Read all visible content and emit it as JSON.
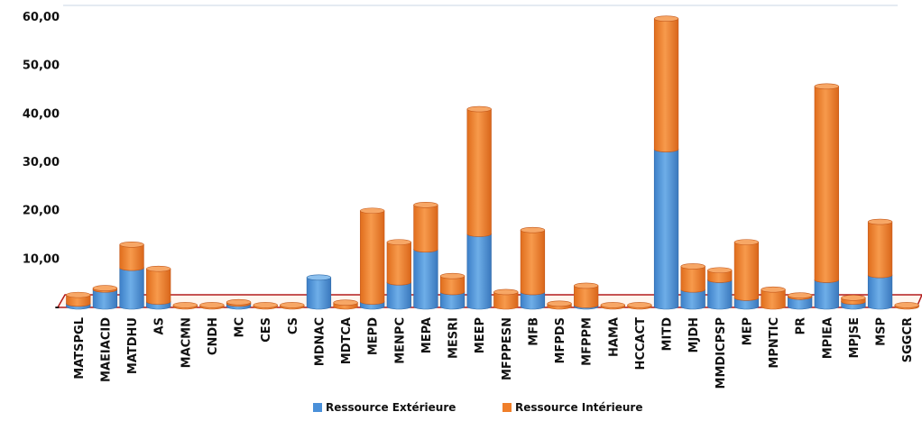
{
  "chart_data": {
    "type": "bar",
    "stacked": true,
    "title": "",
    "xlabel": "",
    "ylabel": "",
    "ylim": [
      0,
      60
    ],
    "yticks": [
      {
        "value": 0,
        "label": "-"
      },
      {
        "value": 10,
        "label": "10,00"
      },
      {
        "value": 20,
        "label": "20,00"
      },
      {
        "value": 30,
        "label": "30,00"
      },
      {
        "value": 40,
        "label": "40,00"
      },
      {
        "value": 50,
        "label": "50,00"
      },
      {
        "value": 60,
        "label": "60,00"
      }
    ],
    "categories": [
      "MATSPGL",
      "MAEIACID",
      "MATDHU",
      "AS",
      "MACMN",
      "CNDH",
      "MC",
      "CES",
      "CS",
      "MDNAC",
      "MDTCA",
      "MEPD",
      "MENPC",
      "MEPA",
      "MESRI",
      "MEEP",
      "MFPPESN",
      "MFB",
      "MFPDS",
      "MFPPM",
      "HAMA",
      "HCCACT",
      "MITD",
      "MJDH",
      "MMDICPSP",
      "MEP",
      "MPNTIC",
      "PR",
      "MPIEA",
      "MPJSE",
      "MSP",
      "SGGCR"
    ],
    "series": [
      {
        "name": "Ressource Extérieure",
        "color": "#4a90d9",
        "values": [
          0.6,
          3.5,
          8.0,
          1.0,
          0.0,
          0.0,
          0.6,
          0.0,
          0.0,
          6.0,
          0.0,
          1.0,
          5.0,
          11.8,
          3.0,
          15.0,
          0.0,
          3.0,
          0.0,
          0.3,
          0.0,
          0.0,
          32.5,
          3.5,
          5.5,
          1.8,
          0.0,
          2.0,
          5.5,
          1.0,
          6.5,
          0.0
        ]
      },
      {
        "name": "Ressource Intérieure",
        "color": "#f07f2a",
        "values": [
          1.8,
          0.3,
          4.8,
          6.8,
          0.3,
          0.3,
          0.3,
          0.3,
          0.3,
          0.0,
          0.8,
          18.8,
          8.3,
          9.2,
          3.3,
          25.8,
          3.0,
          12.8,
          0.6,
          4.0,
          0.3,
          0.3,
          27.0,
          4.8,
          2.0,
          11.5,
          3.5,
          0.3,
          40.0,
          0.8,
          11.0,
          0.3
        ]
      }
    ],
    "legend": "bottom",
    "grid": false
  }
}
